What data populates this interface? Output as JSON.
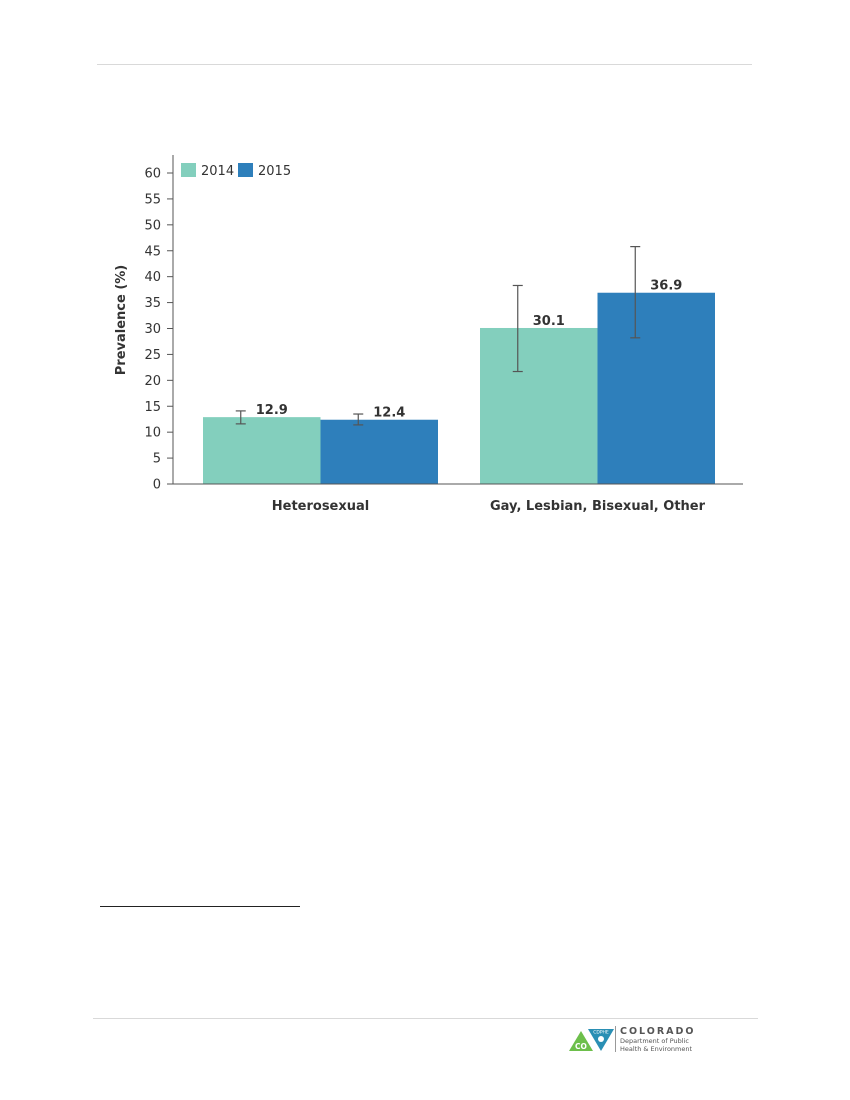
{
  "colors": {
    "series_2014": "#83cfbd",
    "series_2015": "#2e7fbb",
    "axis": "#555555",
    "error_bar": "#555555"
  },
  "chart_data": {
    "type": "bar",
    "categories": [
      "Heterosexual",
      "Gay, Lesbian, Bisexual, Other"
    ],
    "series": [
      {
        "name": "2014",
        "values": [
          12.9,
          30.1
        ],
        "error_low": [
          11.6,
          21.7
        ],
        "error_high": [
          14.1,
          38.3
        ],
        "labels": [
          "12.9",
          "30.1"
        ]
      },
      {
        "name": "2015",
        "values": [
          12.4,
          36.9
        ],
        "error_low": [
          11.4,
          28.2
        ],
        "error_high": [
          13.5,
          45.8
        ],
        "labels": [
          "12.4",
          "36.9"
        ]
      }
    ],
    "ylabel": "Prevalence (%)",
    "xlabel": "",
    "ylim": [
      0,
      60
    ],
    "yticks": [
      "0",
      "5",
      "10",
      "15",
      "20",
      "25",
      "30",
      "35",
      "40",
      "45",
      "50",
      "55",
      "60"
    ],
    "legend": "top-left",
    "grid": false
  },
  "logo": {
    "badge": "CDPHE",
    "mark": "CO",
    "name": "COLORADO",
    "line1": "Department of Public",
    "line2": "Health & Environment"
  }
}
